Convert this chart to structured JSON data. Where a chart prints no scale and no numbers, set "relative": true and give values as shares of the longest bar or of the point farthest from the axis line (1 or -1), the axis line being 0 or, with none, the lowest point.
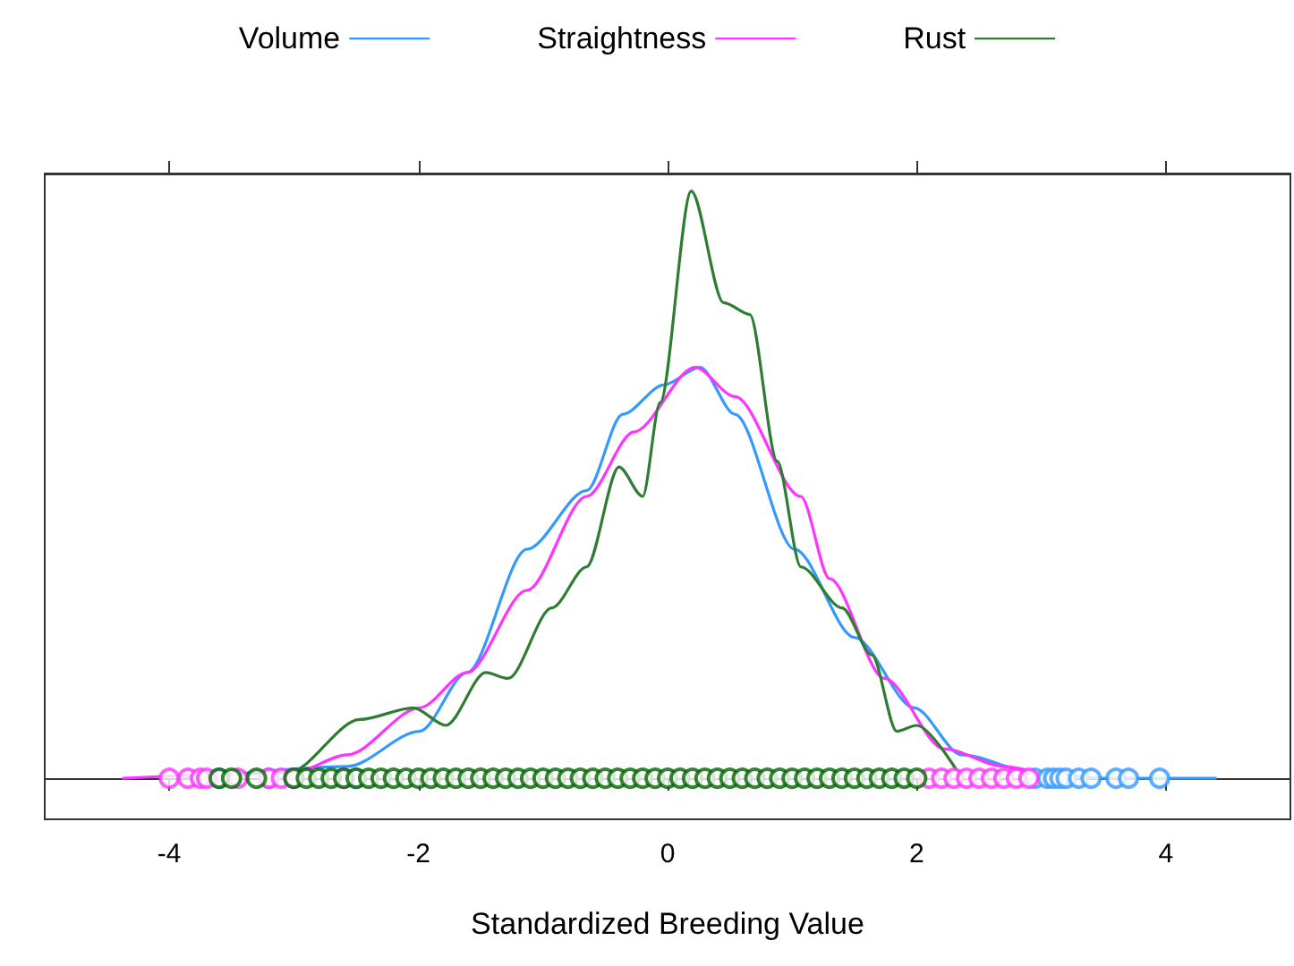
{
  "chart_data": {
    "type": "line",
    "relative": true,
    "xlabel": "Standardized Breeding Value",
    "xlim": [
      -5,
      5
    ],
    "xticks": [
      -4,
      -2,
      0,
      2,
      4
    ],
    "legend": "top",
    "marker": "none",
    "line_style": "solid",
    "grid": false,
    "series": [
      {
        "name": "Volume",
        "color": "#3399ff",
        "x": [
          -3.8,
          -2.57,
          -1.99,
          -1.61,
          -1.13,
          -0.65,
          -0.36,
          -0.03,
          0.26,
          0.54,
          1.02,
          1.5,
          1.98,
          2.36,
          2.94,
          3.5,
          4.4
        ],
        "values": [
          0,
          0.02,
          0.08,
          0.18,
          0.39,
          0.49,
          0.62,
          0.67,
          0.7,
          0.62,
          0.39,
          0.24,
          0.12,
          0.04,
          0.01,
          0,
          0
        ]
      },
      {
        "name": "Straightness",
        "color": "#ff33ff",
        "x": [
          -4.37,
          -3.0,
          -2.57,
          -1.99,
          -1.61,
          -1.13,
          -0.65,
          -0.27,
          0.22,
          0.54,
          1.07,
          1.3,
          1.74,
          2.22,
          2.7,
          3.1
        ],
        "values": [
          0,
          0.01,
          0.04,
          0.12,
          0.18,
          0.32,
          0.48,
          0.59,
          0.7,
          0.65,
          0.48,
          0.34,
          0.17,
          0.05,
          0.02,
          0
        ]
      },
      {
        "name": "Rust",
        "color": "#2e7d32",
        "x": [
          -3.86,
          -3.04,
          -2.47,
          -2.04,
          -1.78,
          -1.46,
          -1.28,
          -0.93,
          -0.65,
          -0.39,
          -0.2,
          -0.06,
          0.19,
          0.45,
          0.66,
          0.88,
          1.07,
          1.4,
          1.64,
          1.84,
          2.0,
          2.36
        ],
        "values": [
          0,
          0.01,
          0.1,
          0.12,
          0.09,
          0.18,
          0.17,
          0.29,
          0.36,
          0.53,
          0.48,
          0.64,
          1,
          0.81,
          0.79,
          0.54,
          0.36,
          0.29,
          0.21,
          0.08,
          0.09,
          0
        ]
      },
      {
        "type": "scatter",
        "marker": "circle",
        "color": "#3399ff",
        "x": [
          -3.6,
          -3.2,
          -2.5,
          2.95,
          3.05,
          3.1,
          3.15,
          3.2,
          3.3,
          3.4,
          3.6,
          3.7,
          3.95
        ],
        "values": [
          0,
          0,
          0,
          0,
          0,
          0,
          0,
          0,
          0,
          0,
          0,
          0,
          0
        ]
      },
      {
        "type": "scatter",
        "marker": "circle",
        "color": "#ff33ff",
        "x": [
          -4.0,
          -3.85,
          -3.75,
          -3.7,
          -3.45,
          -3.2,
          -3.1,
          -3.0,
          -2.6,
          2.1,
          2.2,
          2.3,
          2.4,
          2.5,
          2.6,
          2.7,
          2.8,
          2.9
        ],
        "values": [
          0,
          0,
          0,
          0,
          0,
          0,
          0,
          0,
          0,
          0,
          0,
          0,
          0,
          0,
          0,
          0,
          0,
          0
        ]
      },
      {
        "type": "scatter",
        "marker": "circle",
        "color": "#006400",
        "x": [
          -3.6,
          -3.5,
          -3.3,
          -3.0,
          -2.9,
          -2.8,
          -2.7,
          -2.6,
          -2.5,
          -2.4,
          -2.3,
          -2.2,
          -2.1,
          -2.0,
          -1.9,
          -1.8,
          -1.7,
          -1.6,
          -1.5,
          -1.4,
          -1.3,
          -1.2,
          -1.1,
          -1.0,
          -0.9,
          -0.8,
          -0.7,
          -0.6,
          -0.5,
          -0.4,
          -0.3,
          -0.2,
          -0.1,
          0.0,
          0.1,
          0.2,
          0.3,
          0.4,
          0.5,
          0.6,
          0.7,
          0.8,
          0.9,
          1.0,
          1.1,
          1.2,
          1.3,
          1.4,
          1.5,
          1.6,
          1.7,
          1.8,
          1.9,
          2.0
        ],
        "values": [
          0,
          0,
          0,
          0,
          0,
          0,
          0,
          0,
          0,
          0,
          0,
          0,
          0,
          0,
          0,
          0,
          0,
          0,
          0,
          0,
          0,
          0,
          0,
          0,
          0,
          0,
          0,
          0,
          0,
          0,
          0,
          0,
          0,
          0,
          0,
          0,
          0,
          0,
          0,
          0,
          0,
          0,
          0,
          0,
          0,
          0,
          0,
          0,
          0,
          0,
          0,
          0,
          0,
          0
        ]
      }
    ]
  }
}
